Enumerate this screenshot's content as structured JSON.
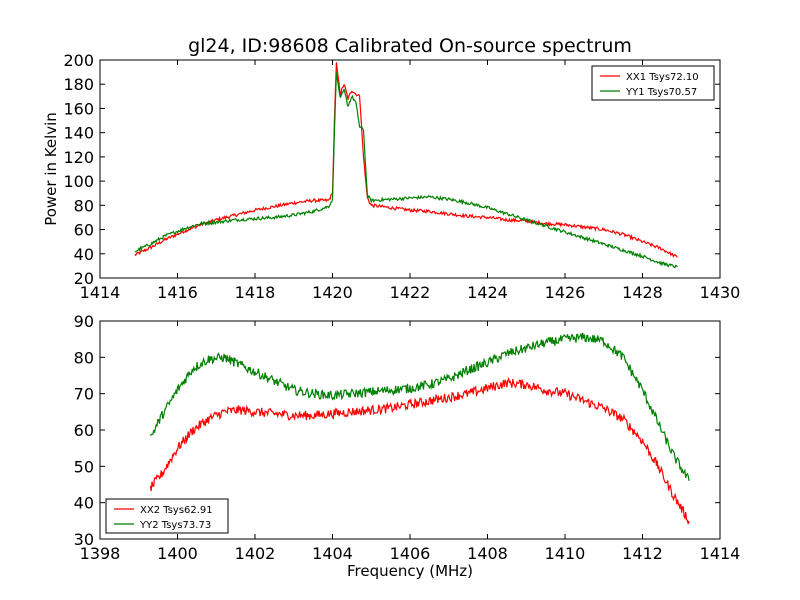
{
  "chart_data": [
    {
      "type": "line",
      "title": "gl24, ID:98608 Calibrated On-source spectrum",
      "xlabel": "",
      "ylabel": "Power in Kelvin",
      "xlim": [
        1414,
        1430
      ],
      "ylim": [
        20,
        200
      ],
      "xticks": [
        1414,
        1416,
        1418,
        1420,
        1422,
        1424,
        1426,
        1428,
        1430
      ],
      "yticks": [
        20,
        40,
        60,
        80,
        100,
        120,
        140,
        160,
        180,
        200
      ],
      "legend_position": "top-right",
      "series": [
        {
          "name": "XX1 Tsys72.10",
          "color": "#ff0000",
          "x": [
            1414.9,
            1415.3,
            1415.7,
            1416.2,
            1416.6,
            1417.0,
            1417.5,
            1418.0,
            1418.5,
            1419.0,
            1419.5,
            1419.9,
            1420.0,
            1420.05,
            1420.1,
            1420.2,
            1420.3,
            1420.4,
            1420.5,
            1420.6,
            1420.7,
            1420.8,
            1420.9,
            1421.0,
            1421.5,
            1422.0,
            1422.5,
            1423.0,
            1423.5,
            1424.0,
            1424.5,
            1425.0,
            1425.5,
            1426.0,
            1426.5,
            1427.0,
            1427.5,
            1428.0,
            1428.5,
            1428.9
          ],
          "y": [
            39,
            45,
            52,
            59,
            64,
            68,
            72,
            76,
            79,
            82,
            84,
            84,
            90,
            150,
            198,
            172,
            180,
            168,
            175,
            172,
            170,
            120,
            86,
            80,
            78,
            76,
            75,
            73,
            71,
            70,
            68,
            67,
            65,
            64,
            62,
            60,
            56,
            50,
            44,
            37
          ]
        },
        {
          "name": "YY1 Tsys70.57",
          "color": "#008000",
          "x": [
            1414.9,
            1415.3,
            1415.7,
            1416.2,
            1416.6,
            1417.0,
            1417.5,
            1418.0,
            1418.5,
            1419.0,
            1419.5,
            1419.9,
            1420.0,
            1420.05,
            1420.1,
            1420.2,
            1420.3,
            1420.4,
            1420.5,
            1420.6,
            1420.7,
            1420.8,
            1420.9,
            1421.0,
            1421.5,
            1422.0,
            1422.5,
            1423.0,
            1423.5,
            1424.0,
            1424.5,
            1425.0,
            1425.5,
            1426.0,
            1426.5,
            1427.0,
            1427.5,
            1428.0,
            1428.5,
            1428.9
          ],
          "y": [
            42,
            48,
            55,
            61,
            65,
            66,
            68,
            69,
            70,
            72,
            75,
            79,
            85,
            140,
            190,
            168,
            175,
            162,
            170,
            165,
            145,
            142,
            88,
            84,
            85,
            86,
            87,
            85,
            82,
            78,
            73,
            68,
            63,
            58,
            53,
            48,
            43,
            38,
            32,
            29
          ]
        }
      ]
    },
    {
      "type": "line",
      "title": "",
      "xlabel": "Frequency (MHz)",
      "ylabel": "",
      "xlim": [
        1398,
        1414
      ],
      "ylim": [
        30,
        90
      ],
      "xticks": [
        1398,
        1400,
        1402,
        1404,
        1406,
        1408,
        1410,
        1412,
        1414
      ],
      "yticks": [
        30,
        40,
        50,
        60,
        70,
        80,
        90
      ],
      "legend_position": "bottom-left",
      "series": [
        {
          "name": "XX2 Tsys62.91",
          "color": "#ff0000",
          "x": [
            1399.3,
            1399.6,
            1400.0,
            1400.4,
            1400.8,
            1401.2,
            1401.6,
            1402.0,
            1402.5,
            1403.0,
            1403.5,
            1404.0,
            1404.5,
            1405.0,
            1405.5,
            1406.0,
            1406.5,
            1407.0,
            1407.5,
            1408.0,
            1408.5,
            1409.0,
            1409.5,
            1410.0,
            1410.5,
            1411.0,
            1411.5,
            1412.0,
            1412.4,
            1412.8,
            1413.2
          ],
          "y": [
            44,
            48,
            55,
            60,
            63,
            65,
            65.5,
            65,
            64.5,
            64,
            64,
            64.5,
            65,
            65.5,
            66,
            67,
            68,
            69,
            70,
            71.5,
            73,
            72.5,
            71,
            70,
            68,
            66,
            63,
            57,
            50,
            42,
            35
          ]
        },
        {
          "name": "YY2 Tsys73.73",
          "color": "#008000",
          "x": [
            1399.3,
            1399.6,
            1400.0,
            1400.4,
            1400.8,
            1401.2,
            1401.6,
            1402.0,
            1402.5,
            1403.0,
            1403.5,
            1404.0,
            1404.5,
            1405.0,
            1405.5,
            1406.0,
            1406.5,
            1407.0,
            1407.5,
            1408.0,
            1408.5,
            1409.0,
            1409.5,
            1410.0,
            1410.5,
            1411.0,
            1411.5,
            1412.0,
            1412.4,
            1412.8,
            1413.2
          ],
          "y": [
            58,
            64,
            71,
            77,
            79.5,
            80,
            78,
            76,
            73.5,
            71,
            70,
            69.5,
            70,
            70.5,
            71,
            71.5,
            72.5,
            74,
            76.5,
            78.5,
            81,
            82.5,
            84,
            85,
            85.5,
            84.5,
            80,
            71,
            62,
            53,
            46
          ]
        }
      ]
    }
  ]
}
